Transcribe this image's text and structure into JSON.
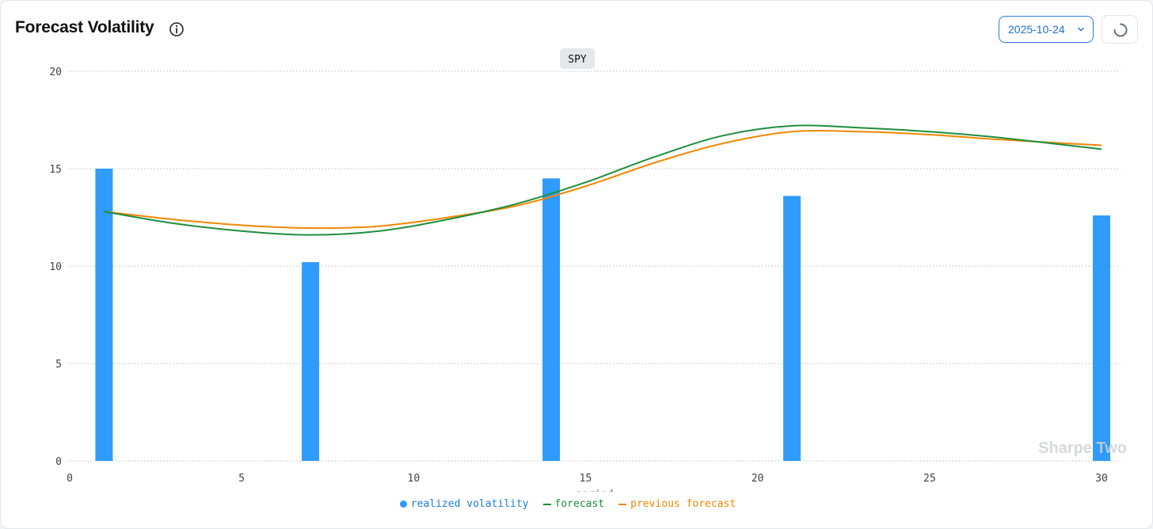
{
  "header": {
    "title": "Forecast Volatility",
    "info_icon": "info-icon",
    "date_select": {
      "value": "2025-10-24",
      "icon": "chevron-down-icon"
    },
    "refresh_icon": "spinner-icon"
  },
  "watermark": "Sharpe Two",
  "colors": {
    "realized": "#2f9bfa",
    "forecast": "#1e8e3e",
    "previous": "#f28705",
    "grid": "#c8cbd0",
    "axis_text": "#444444",
    "ticker_bg": "#e6e7ea"
  },
  "chart_data": {
    "type": "bar",
    "title": "SPY",
    "xlabel": "period",
    "ylabel": "",
    "xlim": [
      0,
      30
    ],
    "ylim": [
      0,
      20
    ],
    "xticks": [
      0,
      5,
      10,
      15,
      20,
      25,
      30
    ],
    "yticks": [
      0,
      5,
      10,
      15,
      20
    ],
    "grid": true,
    "legend_position": "bottom",
    "series": [
      {
        "name": "realized volatility",
        "kind": "bar",
        "x": [
          1,
          7,
          14,
          21,
          30
        ],
        "values": [
          15.0,
          10.2,
          14.5,
          13.6,
          12.6
        ]
      },
      {
        "name": "forecast",
        "kind": "line",
        "x": [
          1,
          3,
          5,
          7,
          9,
          11,
          13,
          15,
          17,
          19,
          21,
          23,
          25,
          27,
          30
        ],
        "values": [
          12.8,
          12.2,
          11.8,
          11.6,
          11.8,
          12.4,
          13.2,
          14.3,
          15.6,
          16.7,
          17.2,
          17.1,
          16.9,
          16.6,
          16.0
        ]
      },
      {
        "name": "previous forecast",
        "kind": "line",
        "x": [
          1,
          3,
          5,
          7,
          9,
          11,
          13,
          15,
          17,
          19,
          21,
          23,
          25,
          27,
          30
        ],
        "values": [
          12.8,
          12.4,
          12.1,
          11.95,
          12.05,
          12.5,
          13.1,
          14.1,
          15.3,
          16.3,
          16.9,
          16.9,
          16.75,
          16.5,
          16.2
        ]
      }
    ]
  }
}
